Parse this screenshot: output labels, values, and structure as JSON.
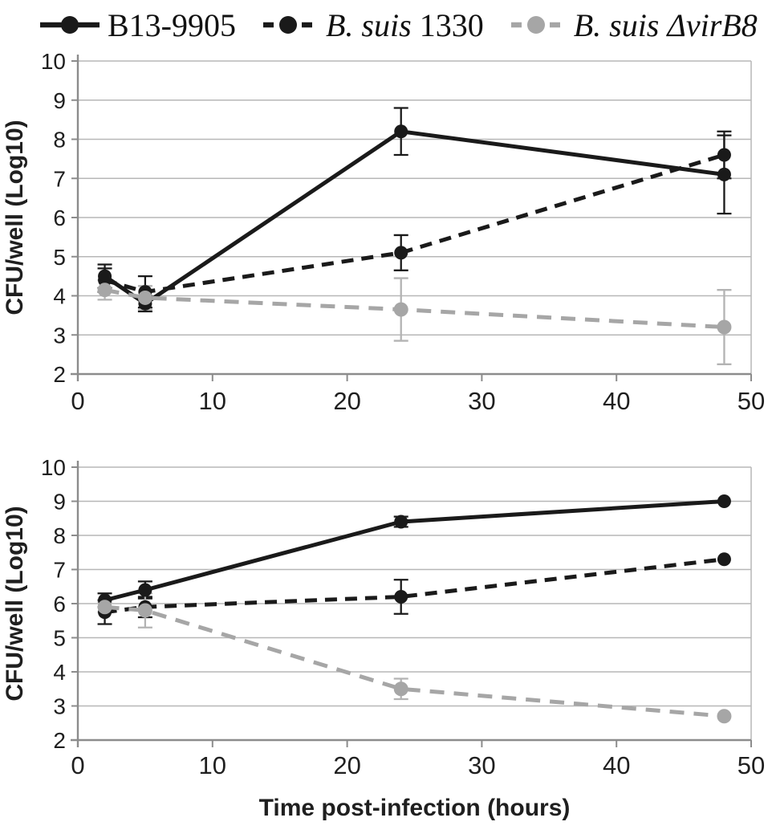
{
  "figure": {
    "colors": {
      "black": "#1a1a1a",
      "gray": "#a6a6a6",
      "gray_err": "#b3b3b3",
      "grid": "#b7b7b7",
      "axis": "#8c8c8c",
      "text": "#1f1f1f"
    },
    "legend": {
      "position": "top",
      "items": [
        {
          "name": "B13-9905",
          "line": "solid",
          "color": "black",
          "parts": [
            {
              "text": "B13-9905",
              "italic": false
            }
          ]
        },
        {
          "name": "B. suis 1330",
          "line": "dashed",
          "color": "black",
          "parts": [
            {
              "text": "B. suis",
              "italic": true
            },
            {
              "text": " 1330",
              "italic": false
            }
          ]
        },
        {
          "name": "B. suis ΔvirB8",
          "line": "dashed",
          "color": "gray",
          "parts": [
            {
              "text": "B. suis ΔvirB8",
              "italic": true
            }
          ]
        }
      ]
    }
  },
  "chart_data": [
    {
      "type": "line",
      "title": "",
      "xlabel": "",
      "ylabel": "CFU/well (Log10)",
      "x": [
        2,
        5,
        24,
        48
      ],
      "xlim": [
        0,
        50
      ],
      "ylim": [
        2,
        10
      ],
      "xticks": [
        0,
        10,
        20,
        30,
        40,
        50
      ],
      "yticks": [
        2,
        3,
        4,
        5,
        6,
        7,
        8,
        9,
        10
      ],
      "grid": true,
      "legend_entries": [
        "B13-9905",
        "B. suis 1330",
        "B. suis ΔvirB8"
      ],
      "series": [
        {
          "name": "B13-9905",
          "style": "solid",
          "color": "black",
          "values": [
            4.5,
            3.8,
            8.2,
            7.1
          ],
          "errors": [
            0.3,
            0.2,
            0.6,
            1.0
          ]
        },
        {
          "name": "B. suis 1330",
          "style": "dashed",
          "color": "black",
          "values": [
            4.4,
            4.1,
            5.1,
            7.6
          ],
          "errors": [
            0.3,
            0.4,
            0.45,
            0.6
          ]
        },
        {
          "name": "B. suis ΔvirB8",
          "style": "dashed",
          "color": "gray",
          "values": [
            4.15,
            3.95,
            3.65,
            3.2
          ],
          "errors": [
            0.25,
            0.3,
            0.8,
            0.95
          ]
        }
      ]
    },
    {
      "type": "line",
      "title": "",
      "xlabel": "Time post-infection (hours)",
      "ylabel": "CFU/well (Log10)",
      "x": [
        2,
        5,
        24,
        48
      ],
      "xlim": [
        0,
        50
      ],
      "ylim": [
        2,
        10
      ],
      "xticks": [
        0,
        10,
        20,
        30,
        40,
        50
      ],
      "yticks": [
        2,
        3,
        4,
        5,
        6,
        7,
        8,
        9,
        10
      ],
      "grid": true,
      "legend_entries": [
        "B13-9905",
        "B. suis 1330",
        "B. suis ΔvirB8"
      ],
      "series": [
        {
          "name": "B13-9905",
          "style": "solid",
          "color": "black",
          "values": [
            6.1,
            6.4,
            8.4,
            9.0
          ],
          "errors": [
            0.2,
            0.25,
            0.15,
            0
          ]
        },
        {
          "name": "B. suis 1330",
          "style": "dashed",
          "color": "black",
          "values": [
            5.75,
            5.9,
            6.2,
            7.3
          ],
          "errors": [
            0.35,
            0.3,
            0.5,
            0
          ]
        },
        {
          "name": "B. suis ΔvirB8",
          "style": "dashed",
          "color": "gray",
          "values": [
            5.9,
            5.8,
            3.5,
            2.7
          ],
          "errors": [
            0.15,
            0.5,
            0.3,
            0
          ]
        }
      ]
    }
  ]
}
